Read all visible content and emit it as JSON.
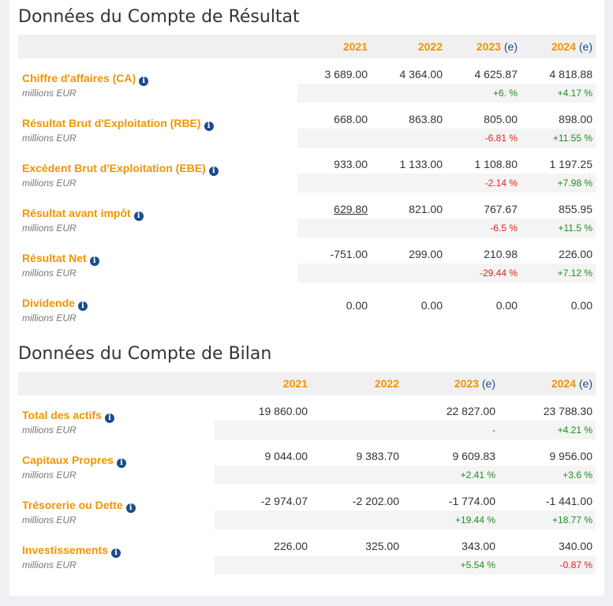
{
  "income": {
    "title": "Données du Compte de Résultat",
    "years": [
      {
        "year": "2021",
        "est": ""
      },
      {
        "year": "2022",
        "est": ""
      },
      {
        "year": "2023",
        "est": "(e)"
      },
      {
        "year": "2024",
        "est": "(e)"
      }
    ],
    "rows": [
      {
        "label": "Chiffre d'affaires (CA)",
        "unit": "millions EUR",
        "values": [
          "3 689.00",
          "4 364.00",
          "4 625.87",
          "4 818.88"
        ],
        "changes": [
          "",
          "",
          "+6. %",
          "+4.17 %"
        ]
      },
      {
        "label": "Résultat Brut d'Exploitation (RBE)",
        "unit": "millions EUR",
        "values": [
          "668.00",
          "863.80",
          "805.00",
          "898.00"
        ],
        "changes": [
          "",
          "",
          "-6.81 %",
          "+11.55 %"
        ]
      },
      {
        "label": "Excédent Brut d'Exploitation (EBE)",
        "unit": "millions EUR",
        "values": [
          "933.00",
          "1 133.00",
          "1 108.80",
          "1 197.25"
        ],
        "changes": [
          "",
          "",
          "-2.14 %",
          "+7.98 %"
        ]
      },
      {
        "label": "Résultat avant impôt",
        "unit": "millions EUR",
        "values": [
          "629.80",
          "821.00",
          "767.67",
          "855.95"
        ],
        "changes": [
          "",
          "",
          "-6.5 %",
          "+11.5 %"
        ]
      },
      {
        "label": "Résultat Net",
        "unit": "millions EUR",
        "values": [
          "-751.00",
          "299.00",
          "210.98",
          "226.00"
        ],
        "changes": [
          "",
          "",
          "-29.44 %",
          "+7.12 %"
        ]
      },
      {
        "label": "Dividende",
        "unit": "millions EUR",
        "values": [
          "0.00",
          "0.00",
          "0.00",
          "0.00"
        ]
      }
    ]
  },
  "balance": {
    "title": "Données du Compte de Bilan",
    "years": [
      {
        "year": "2021",
        "est": ""
      },
      {
        "year": "2022",
        "est": ""
      },
      {
        "year": "2023",
        "est": "(e)"
      },
      {
        "year": "2024",
        "est": "(e)"
      }
    ],
    "rows": [
      {
        "label": "Total des actifs",
        "unit": "millions EUR",
        "values": [
          "19 860.00",
          "",
          "22 827.00",
          "23 788.30"
        ],
        "changes": [
          "",
          "",
          "-",
          "+4.21 %"
        ]
      },
      {
        "label": "Capitaux Propres",
        "unit": "millions EUR",
        "values": [
          "9 044.00",
          "9 383.70",
          "9 609.83",
          "9 956.00"
        ],
        "changes": [
          "",
          "",
          "+2.41 %",
          "+3.6 %"
        ]
      },
      {
        "label": "Trésorerie ou Dette",
        "unit": "millions EUR",
        "values": [
          "-2 974.07",
          "-2 202.00",
          "-1 774.00",
          "-1 441.00"
        ],
        "changes": [
          "",
          "",
          "+19.44 %",
          "+18.77 %"
        ]
      },
      {
        "label": "Investissements",
        "unit": "millions EUR",
        "values": [
          "226.00",
          "325.00",
          "343.00",
          "340.00"
        ],
        "changes": [
          "",
          "",
          "+5.54 %",
          "-0.87 %"
        ]
      }
    ]
  },
  "info_icon": "info-circle-icon",
  "colors": {
    "label": "#f29400",
    "estimate": "#1a4c8c",
    "positive": "#1e8c1e",
    "negative": "#e52020"
  }
}
